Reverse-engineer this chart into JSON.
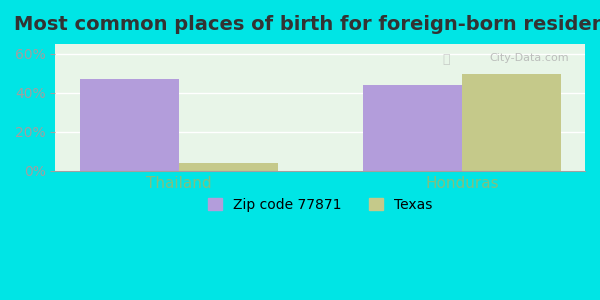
{
  "title": "Most common places of birth for foreign-born residents",
  "categories": [
    "Thailand",
    "Honduras"
  ],
  "zip_values": [
    47.0,
    44.0
  ],
  "texas_values": [
    4.0,
    49.5
  ],
  "zip_color": "#b39ddb",
  "texas_color": "#c5c98a",
  "zip_label": "Zip code 77871",
  "texas_label": "Texas",
  "background_color": "#00e5e5",
  "plot_bg_color": "#e8f5e8",
  "ylim": [
    0,
    65
  ],
  "yticks": [
    0,
    20,
    40,
    60
  ],
  "bar_width": 0.35,
  "title_fontsize": 14,
  "tick_color": "#a0a0a0",
  "xlabel_color": "#80c080"
}
